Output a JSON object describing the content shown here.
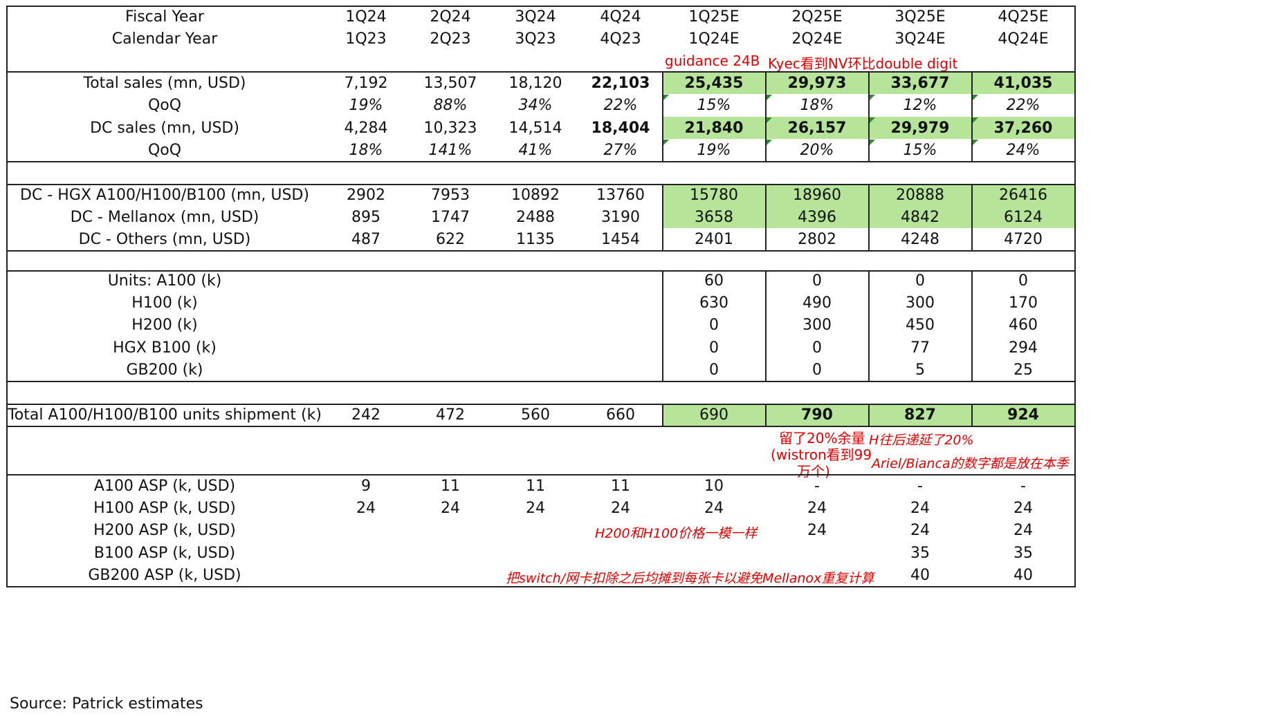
{
  "columns": [
    "",
    "1Q24",
    "2Q24",
    "3Q24",
    "4Q24",
    "1Q25E",
    "2Q25E",
    "3Q25E",
    "4Q25E"
  ],
  "header": {
    "fiscal": {
      "label": "Fiscal Year",
      "values": [
        "1Q24",
        "2Q24",
        "3Q24",
        "4Q24",
        "1Q25E",
        "2Q25E",
        "3Q25E",
        "4Q25E"
      ]
    },
    "calendar": {
      "label": "Calendar Year",
      "values": [
        "1Q23",
        "2Q23",
        "3Q23",
        "4Q23",
        "1Q24E",
        "2Q24E",
        "3Q24E",
        "4Q24E"
      ]
    }
  },
  "notes": {
    "guidance": "guidance 24B",
    "kyec": "Kyec看到NV环比double digit",
    "reserve_1": "留了20%余量",
    "reserve_2": "(wistron看到99",
    "reserve_3": "万个)",
    "delay": "H往后递延了20%",
    "ariel": "Ariel/Bianca的数字都是放在本季",
    "h200_price": "H200和H100价格一模一样",
    "switch": "把switch/网卡扣除之后均摊到每张卡以避免Mellanox重复计算"
  },
  "rows": {
    "total_sales": {
      "label": "Total sales (mn, USD)",
      "values": [
        "7,192",
        "13,507",
        "18,120",
        "22,103",
        "25,435",
        "29,973",
        "33,677",
        "41,035"
      ]
    },
    "total_qoq": {
      "label": "QoQ",
      "values": [
        "19%",
        "88%",
        "34%",
        "22%",
        "15%",
        "18%",
        "12%",
        "22%"
      ]
    },
    "dc_sales": {
      "label": "DC sales (mn, USD)",
      "values": [
        "4,284",
        "10,323",
        "14,514",
        "18,404",
        "21,840",
        "26,157",
        "29,979",
        "37,260"
      ]
    },
    "dc_qoq": {
      "label": "QoQ",
      "values": [
        "18%",
        "141%",
        "41%",
        "27%",
        "19%",
        "20%",
        "15%",
        "24%"
      ]
    },
    "hgx": {
      "label": "DC - HGX A100/H100/B100 (mn, USD)",
      "values": [
        "2902",
        "7953",
        "10892",
        "13760",
        "15780",
        "18960",
        "20888",
        "26416"
      ]
    },
    "mellanox": {
      "label": "DC - Mellanox (mn, USD)",
      "values": [
        "895",
        "1747",
        "2488",
        "3190",
        "3658",
        "4396",
        "4842",
        "6124"
      ]
    },
    "others": {
      "label": "DC - Others (mn, USD)",
      "values": [
        "487",
        "622",
        "1135",
        "1454",
        "2401",
        "2802",
        "4248",
        "4720"
      ]
    },
    "units_a100": {
      "label": "Units: A100 (k)",
      "values": [
        "",
        "",
        "",
        "",
        "60",
        "0",
        "0",
        "0"
      ]
    },
    "h100": {
      "label": "H100 (k)",
      "values": [
        "",
        "",
        "",
        "",
        "630",
        "490",
        "300",
        "170"
      ]
    },
    "h200": {
      "label": "H200 (k)",
      "values": [
        "",
        "",
        "",
        "",
        "0",
        "300",
        "450",
        "460"
      ]
    },
    "hgx_b100": {
      "label": "HGX B100 (k)",
      "values": [
        "",
        "",
        "",
        "",
        "0",
        "0",
        "77",
        "294"
      ]
    },
    "gb200": {
      "label": "GB200 (k)",
      "values": [
        "",
        "",
        "",
        "",
        "0",
        "0",
        "5",
        "25"
      ]
    },
    "total_units": {
      "label": "Total A100/H100/B100 units shipment (k)",
      "values": [
        "242",
        "472",
        "560",
        "660",
        "690",
        "790",
        "827",
        "924"
      ]
    },
    "a100_asp": {
      "label": "A100 ASP (k, USD)",
      "values": [
        "9",
        "11",
        "11",
        "11",
        "10",
        "-",
        "-",
        "-"
      ]
    },
    "h100_asp": {
      "label": "H100 ASP (k, USD)",
      "values": [
        "24",
        "24",
        "24",
        "24",
        "24",
        "24",
        "24",
        "24"
      ]
    },
    "h200_asp": {
      "label": "H200 ASP (k, USD)",
      "values": [
        "",
        "",
        "",
        "",
        "",
        "24",
        "24",
        "24"
      ]
    },
    "b100_asp": {
      "label": "B100 ASP (k, USD)",
      "values": [
        "",
        "",
        "",
        "",
        "",
        "",
        "35",
        "35"
      ]
    },
    "gb200_asp": {
      "label": "GB200 ASP (k, USD)",
      "values": [
        "",
        "",
        "",
        "",
        "",
        "",
        "40",
        "40"
      ]
    }
  },
  "source": "Source: Patrick estimates",
  "colors": {
    "highlight": "#b6e59a",
    "note": "#e00000",
    "border": "#222222"
  }
}
